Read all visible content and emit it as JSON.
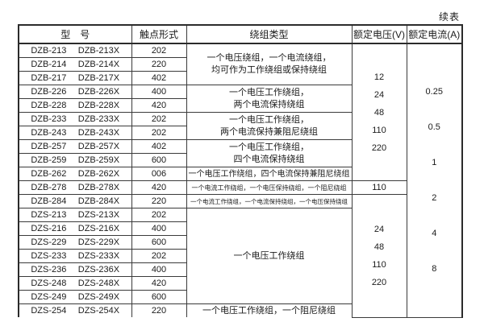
{
  "page": {
    "continued_label": "续表"
  },
  "table": {
    "headers": [
      "型　号",
      "触点形式",
      "绕组类型",
      "额定电压(V)",
      "额定电流(A)"
    ],
    "rows": [
      {
        "model": "DZB-213",
        "model_x": "DZB-213X",
        "contact": "202"
      },
      {
        "model": "DZB-214",
        "model_x": "DZB-214X",
        "contact": "220"
      },
      {
        "model": "DZB-217",
        "model_x": "DZB-217X",
        "contact": "402"
      },
      {
        "model": "DZB-226",
        "model_x": "DZB-226X",
        "contact": "400"
      },
      {
        "model": "DZB-228",
        "model_x": "DZB-228X",
        "contact": "420"
      },
      {
        "model": "DZB-233",
        "model_x": "DZB-233X",
        "contact": "202"
      },
      {
        "model": "DZB-243",
        "model_x": "DZB-243X",
        "contact": "202"
      },
      {
        "model": "DZB-257",
        "model_x": "DZB-257X",
        "contact": "402"
      },
      {
        "model": "DZB-259",
        "model_x": "DZB-259X",
        "contact": "600"
      },
      {
        "model": "DZB-262",
        "model_x": "DZB-262X",
        "contact": "006"
      },
      {
        "model": "DZB-278",
        "model_x": "DZB-278X",
        "contact": "420"
      },
      {
        "model": "DZB-284",
        "model_x": "DZB-284X",
        "contact": "220"
      },
      {
        "model": "DZS-213",
        "model_x": "DZS-213X",
        "contact": "202"
      },
      {
        "model": "DZS-216",
        "model_x": "DZS-216X",
        "contact": "400"
      },
      {
        "model": "DZS-229",
        "model_x": "DZS-229X",
        "contact": "600"
      },
      {
        "model": "DZS-233",
        "model_x": "DZS-233X",
        "contact": "202"
      },
      {
        "model": "DZS-236",
        "model_x": "DZS-236X",
        "contact": "400"
      },
      {
        "model": "DZS-248",
        "model_x": "DZS-248X",
        "contact": "420"
      },
      {
        "model": "DZS-249",
        "model_x": "DZS-249X",
        "contact": "600"
      },
      {
        "model": "DZS-254",
        "model_x": "DZS-254X",
        "contact": "220"
      }
    ],
    "winding_groups": [
      {
        "rows": 3,
        "lines": [
          "一个电压绕组，一个电流绕组，",
          "均可作为工作绕组或保持绕组"
        ]
      },
      {
        "rows": 2,
        "lines": [
          "一个电压工作绕组，",
          "两个电流保持绕组"
        ]
      },
      {
        "rows": 2,
        "lines": [
          "一个电压工作绕组，",
          "两个电流保持兼阻尼绕组"
        ]
      },
      {
        "rows": 2,
        "lines": [
          "一个电压工作绕组，",
          "四个电流保持绕组"
        ]
      },
      {
        "rows": 1,
        "lines": [
          "一个电压工作绕组，四个电流保持兼阻尼绕组"
        ]
      },
      {
        "rows": 1,
        "lines": [
          "一个电流工作绕组，一个电压保持绕组，一个阻尼绕组"
        ]
      },
      {
        "rows": 1,
        "lines": [
          "一个电流工作绕组，一个电流保持绕组，一个电压保持绕组"
        ]
      },
      {
        "rows": 7,
        "lines": [
          "一个电压工作绕组"
        ]
      },
      {
        "rows": 1,
        "lines": [
          "一个电压工作绕组，一个阻尼绕组"
        ]
      }
    ],
    "voltage_groups": [
      {
        "rows": 10,
        "values": [
          "12",
          "24",
          "48",
          "110",
          "220"
        ]
      },
      {
        "rows": 1,
        "values": [
          "110"
        ]
      },
      {
        "rows": 9,
        "values": [
          "24",
          "48",
          "110",
          "220"
        ]
      }
    ],
    "current_groups": [
      {
        "rows": 20,
        "values": [
          "0.25",
          "0.5",
          "1",
          "2",
          "4",
          "8"
        ]
      }
    ]
  }
}
